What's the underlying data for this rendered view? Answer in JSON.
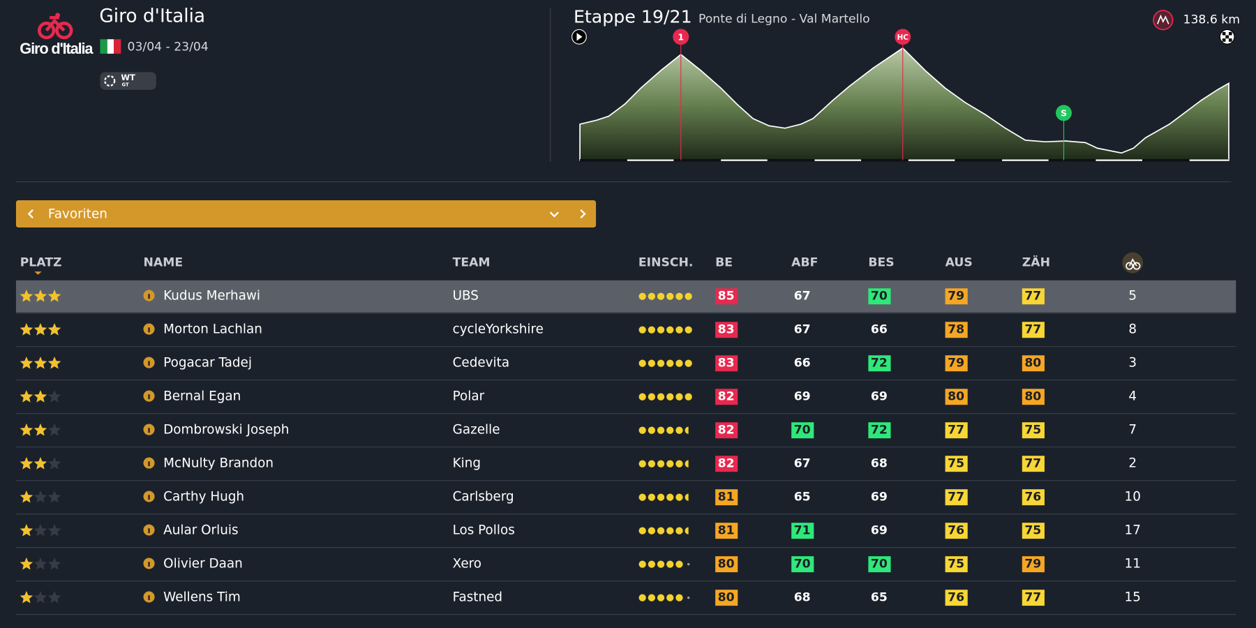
{
  "header": {
    "logo_text": "Giro d'Italia",
    "race_name": "Giro d'Italia",
    "dates": "03/04 - 23/04",
    "badge": [
      "WT",
      "GT"
    ]
  },
  "stage": {
    "label": "Etappe 19/21",
    "route": "Ponte di Legno - Val Martello",
    "distance": "138.6 km",
    "markers": [
      "1",
      "HC",
      "S"
    ]
  },
  "filter": {
    "label": "Favoriten"
  },
  "table": {
    "columns": [
      "PLATZ",
      "NAME",
      "TEAM",
      "EINSCH.",
      "BE",
      "ABF",
      "BES",
      "AUS",
      "ZÄH"
    ],
    "stat_colors": [
      {
        "min": 82,
        "color": "#e8294f",
        "text": "#ffffff"
      },
      {
        "min": 78,
        "color": "#f5a623",
        "text": "#1b1f26"
      },
      {
        "min": 75,
        "color": "#f7d635",
        "text": "#1b1f26"
      },
      {
        "min": 70,
        "color": "#2ee87a",
        "text": "#1b1f26"
      }
    ],
    "rows": [
      {
        "stars": 3,
        "name": "Kudus Merhawi",
        "team": "UBS",
        "form": 6,
        "stats": [
          85,
          67,
          70,
          79,
          77
        ],
        "number": 5
      },
      {
        "stars": 3,
        "name": "Morton Lachlan",
        "team": "cycleYorkshire",
        "form": 6,
        "stats": [
          83,
          67,
          66,
          78,
          77
        ],
        "number": 8
      },
      {
        "stars": 3,
        "name": "Pogacar Tadej",
        "team": "Cedevita",
        "form": 6,
        "stats": [
          83,
          66,
          72,
          79,
          80
        ],
        "number": 3
      },
      {
        "stars": 2,
        "name": "Bernal Egan",
        "team": "Polar",
        "form": 6,
        "stats": [
          82,
          69,
          69,
          80,
          80
        ],
        "number": 4
      },
      {
        "stars": 2,
        "name": "Dombrowski Joseph",
        "team": "Gazelle",
        "form": 5.5,
        "stats": [
          82,
          70,
          72,
          77,
          75
        ],
        "number": 7
      },
      {
        "stars": 2,
        "name": "McNulty Brandon",
        "team": "King",
        "form": 5.5,
        "stats": [
          82,
          67,
          68,
          75,
          77
        ],
        "number": 2
      },
      {
        "stars": 1,
        "name": "Carthy Hugh",
        "team": "Carlsberg",
        "form": 5.5,
        "stats": [
          81,
          65,
          69,
          77,
          76
        ],
        "number": 10
      },
      {
        "stars": 1,
        "name": "Aular Orluis",
        "team": "Los Pollos",
        "form": 5.5,
        "stats": [
          81,
          71,
          69,
          76,
          75
        ],
        "number": 17
      },
      {
        "stars": 1,
        "name": "Olivier Daan",
        "team": "Xero",
        "form": 5,
        "stats": [
          80,
          70,
          70,
          75,
          79
        ],
        "number": 11
      },
      {
        "stars": 1,
        "name": "Wellens Tim",
        "team": "Fastned",
        "form": 5,
        "stats": [
          80,
          68,
          65,
          76,
          77
        ],
        "number": 15
      }
    ]
  }
}
